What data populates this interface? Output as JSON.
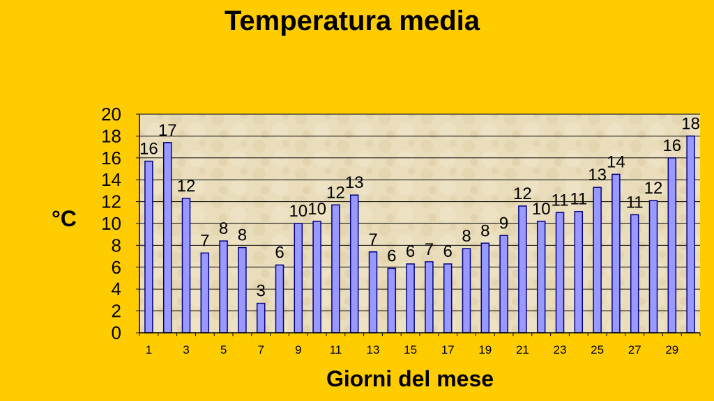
{
  "chart_data": {
    "type": "bar",
    "title": "Temperatura media",
    "xlabel": "Giorni del mese",
    "ylabel": "°C",
    "ylim": [
      0,
      20
    ],
    "yticks": [
      0,
      2,
      4,
      6,
      8,
      10,
      12,
      14,
      16,
      18,
      20
    ],
    "categories": [
      1,
      2,
      3,
      4,
      5,
      6,
      7,
      8,
      9,
      10,
      11,
      12,
      13,
      14,
      15,
      16,
      17,
      18,
      19,
      20,
      21,
      22,
      23,
      24,
      25,
      26,
      27,
      28,
      29,
      30
    ],
    "xtick_labels": [
      1,
      3,
      5,
      7,
      9,
      11,
      13,
      15,
      17,
      19,
      21,
      23,
      25,
      27,
      29
    ],
    "values": [
      15.7,
      17.4,
      12.3,
      7.3,
      8.4,
      7.8,
      2.7,
      6.2,
      10.0,
      10.2,
      11.7,
      12.6,
      7.4,
      5.9,
      6.3,
      6.5,
      6.3,
      7.7,
      8.2,
      8.9,
      11.6,
      10.2,
      11.0,
      11.1,
      13.3,
      14.5,
      10.8,
      12.1,
      16.0,
      18.0
    ],
    "data_labels": [
      "16",
      "17",
      "12",
      "7",
      "8",
      "8",
      "3",
      "6",
      "10",
      "10",
      "12",
      "13",
      "7",
      "6",
      "6",
      "7",
      "6",
      "8",
      "8",
      "9",
      "12",
      "10",
      "11",
      "11",
      "13",
      "14",
      "11",
      "12",
      "16",
      "18"
    ],
    "grid": true,
    "colors": {
      "background": "#FFCC00",
      "plot_area": "#E8DCB8",
      "bar_fill": "#9999FF",
      "bar_stroke": "#000080",
      "gridline": "#000000"
    }
  }
}
